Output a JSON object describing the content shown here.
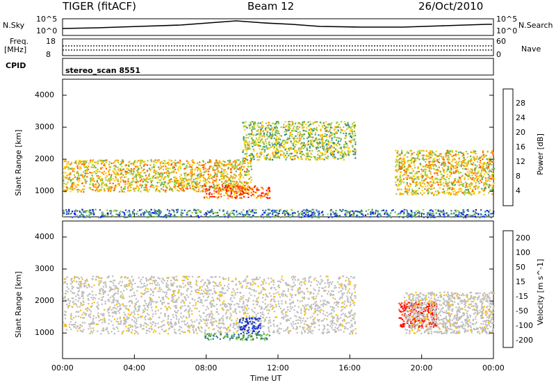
{
  "header": {
    "radar": "TIGER (fitACF)",
    "beam": "Beam 12",
    "date": "26/Oct/2010"
  },
  "params": {
    "nsky_label": "N.Sky",
    "nsky_ticks": [
      "10^5",
      "10^0"
    ],
    "nsearch_label": "N.Search",
    "nsearch_ticks": [
      "10^5",
      "10^0"
    ],
    "freq_label_1": "Freq.",
    "freq_label_2": "[MHz]",
    "freq_ticks": [
      "18",
      "8"
    ],
    "nave_label": "Nave",
    "nave_ticks": [
      "60",
      "0"
    ],
    "cpid_label": "CPID",
    "cpid_value": "stereo_scan 8551"
  },
  "colors": {
    "power": [
      "#0000ff",
      "#1a4fd6",
      "#2f7f8f",
      "#5fa85f",
      "#9ccf3a",
      "#ffd000",
      "#ff9a00",
      "#ff5a00",
      "#ff1a00"
    ],
    "velocity": [
      "#1a2fd6",
      "#2f6f9f",
      "#3f8f3f",
      "#6fcf3f",
      "#c8c8c8",
      "#ffc000",
      "#ff8c00",
      "#ff4000",
      "#ff0000"
    ],
    "ground_scatter": "#bdbdbd"
  },
  "chart_data": [
    {
      "type": "heatmap",
      "title": "Power",
      "xlabel": "Time UT",
      "ylabel": "Slant Range [km]",
      "xlim": [
        "00:00",
        "24:00"
      ],
      "xticks": [
        "00:00",
        "04:00",
        "08:00",
        "12:00",
        "16:00",
        "20:00",
        "00:00"
      ],
      "ylim": [
        200,
        4500
      ],
      "yticks": [
        "1000",
        "2000",
        "3000",
        "4000"
      ],
      "colorbar_label": "Power [dB]",
      "colorbar_ticks": [
        "4",
        "8",
        "12",
        "16",
        "20",
        "24",
        "28"
      ],
      "colorbar_range": [
        0,
        30
      ],
      "regions": [
        {
          "name": "main band",
          "time_hr": [
            0.0,
            10.5
          ],
          "range_km": [
            1000,
            2000
          ],
          "power_db": 20
        },
        {
          "name": "strong echo",
          "time_hr": [
            7.8,
            11.5
          ],
          "range_km": [
            800,
            1200
          ],
          "power_db": 28
        },
        {
          "name": "upper band",
          "time_hr": [
            10.0,
            16.3
          ],
          "range_km": [
            2000,
            3200
          ],
          "power_db": 14
        },
        {
          "name": "near range",
          "time_hr": [
            0.0,
            24.0
          ],
          "range_km": [
            200,
            450
          ],
          "power_db": 6
        },
        {
          "name": "evening band",
          "time_hr": [
            18.5,
            24.0
          ],
          "range_km": [
            900,
            2300
          ],
          "power_db": 18
        }
      ]
    },
    {
      "type": "heatmap",
      "title": "Velocity",
      "xlabel": "Time UT",
      "ylabel": "Slant Range [km]",
      "xlim": [
        "00:00",
        "24:00"
      ],
      "xticks": [
        "00:00",
        "04:00",
        "08:00",
        "12:00",
        "16:00",
        "20:00",
        "00:00"
      ],
      "ylim": [
        200,
        4500
      ],
      "yticks": [
        "1000",
        "2000",
        "3000",
        "4000"
      ],
      "colorbar_label": "Velocity [m s^-1]",
      "colorbar_ticks": [
        "200",
        "100",
        "50",
        "15",
        "-15",
        "-50",
        "-100",
        "-200"
      ],
      "colorbar_range": [
        -250,
        250
      ],
      "regions": [
        {
          "name": "ground scatter",
          "time_hr": [
            0.0,
            16.3
          ],
          "range_km": [
            1000,
            2800
          ],
          "velocity": 0
        },
        {
          "name": "green echo",
          "time_hr": [
            7.8,
            11.5
          ],
          "range_km": [
            800,
            1000
          ],
          "velocity": 60
        },
        {
          "name": "blue echo",
          "time_hr": [
            9.8,
            11.0
          ],
          "range_km": [
            1000,
            1500
          ],
          "velocity": 180
        },
        {
          "name": "red echo",
          "time_hr": [
            18.7,
            20.8
          ],
          "range_km": [
            1200,
            2000
          ],
          "velocity": -180
        },
        {
          "name": "evening ground scatter",
          "time_hr": [
            19.0,
            24.0
          ],
          "range_km": [
            1000,
            2300
          ],
          "velocity": 0
        }
      ]
    }
  ]
}
